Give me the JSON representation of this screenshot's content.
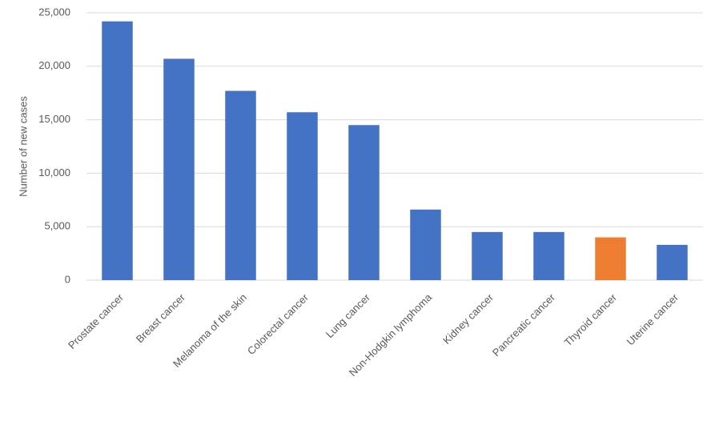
{
  "chart_data": {
    "type": "bar",
    "y_label": "Number of new cases",
    "categories": [
      "Prostate cancer",
      "Breast cancer",
      "Melanoma of the skin",
      "Colorectal cancer",
      "Lung cancer",
      "Non-Hodgkin lymphoma",
      "Kidney cancer",
      "Pancreatic cancer",
      "Thyroid cancer",
      "Uterine cancer"
    ],
    "values": [
      24200,
      20700,
      17700,
      15700,
      14500,
      6600,
      4500,
      4500,
      4000,
      3300
    ],
    "colors": [
      "#4472c4",
      "#4472c4",
      "#4472c4",
      "#4472c4",
      "#4472c4",
      "#4472c4",
      "#4472c4",
      "#4472c4",
      "#ed7d31",
      "#4472c4"
    ],
    "ylim": [
      0,
      25000
    ],
    "yticks": [
      0,
      {
        "value": 5000,
        "label": "5,000"
      },
      {
        "value": 10000,
        "label": "10,000"
      },
      {
        "value": 15000,
        "label": "15,000"
      },
      {
        "value": 20000,
        "label": "20,000"
      },
      {
        "value": 25000,
        "label": "25,000"
      }
    ],
    "grid": true
  }
}
